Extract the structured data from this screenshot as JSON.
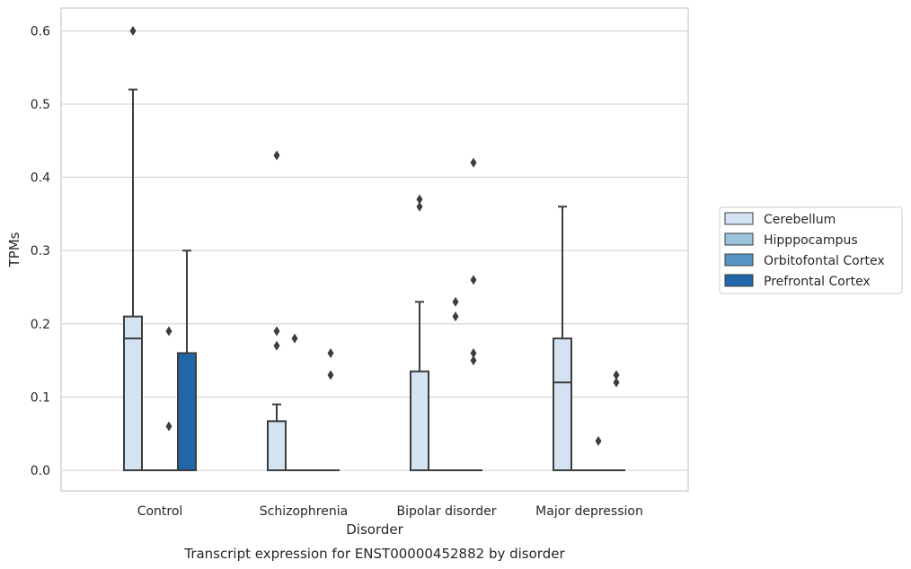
{
  "chart_data": {
    "type": "box",
    "caption": "Transcript expression for ENST00000452882 by disorder",
    "xlabel": "Disorder",
    "ylabel": "TPMs",
    "ylim": [
      -0.03,
      0.63
    ],
    "yticks": [
      "0.0",
      "0.1",
      "0.2",
      "0.3",
      "0.4",
      "0.5",
      "0.6"
    ],
    "grid": "horizontal",
    "legend_position": "right",
    "categories": [
      "Control",
      "Schizophrenia",
      "Bipolar disorder",
      "Major depression"
    ],
    "series": [
      {
        "name": "Cerebellum",
        "color": "#d4e3f1",
        "boxes": [
          {
            "min": 0,
            "q1": 0,
            "median": 0.18,
            "q3": 0.21,
            "max": 0.52,
            "outliers": [
              0.6
            ]
          },
          {
            "min": 0,
            "q1": 0,
            "median": 0,
            "q3": 0.067,
            "max": 0.09,
            "outliers": [
              0.43,
              0.19,
              0.17
            ]
          },
          {
            "min": 0,
            "q1": 0,
            "median": 0,
            "q3": 0.135,
            "max": 0.23,
            "outliers": [
              0.37,
              0.36
            ]
          },
          {
            "min": 0,
            "q1": 0,
            "median": 0.12,
            "q3": 0.18,
            "max": 0.36,
            "outliers": []
          }
        ]
      },
      {
        "name": "Hipppocampus",
        "color": "#9cc3de",
        "boxes": [
          {
            "min": 0,
            "q1": 0,
            "median": 0,
            "q3": 0,
            "max": 0,
            "outliers": []
          },
          {
            "min": 0,
            "q1": 0,
            "median": 0,
            "q3": 0,
            "max": 0,
            "outliers": [
              0.18
            ]
          },
          {
            "min": 0,
            "q1": 0,
            "median": 0,
            "q3": 0,
            "max": 0,
            "outliers": []
          },
          {
            "min": 0,
            "q1": 0,
            "median": 0,
            "q3": 0,
            "max": 0,
            "outliers": []
          }
        ]
      },
      {
        "name": "Orbitofontal Cortex",
        "color": "#5596c5",
        "boxes": [
          {
            "min": 0,
            "q1": 0,
            "median": 0,
            "q3": 0,
            "max": 0,
            "outliers": [
              0.19,
              0.06
            ]
          },
          {
            "min": 0,
            "q1": 0,
            "median": 0,
            "q3": 0,
            "max": 0,
            "outliers": []
          },
          {
            "min": 0,
            "q1": 0,
            "median": 0,
            "q3": 0,
            "max": 0,
            "outliers": [
              0.23,
              0.21
            ]
          },
          {
            "min": 0,
            "q1": 0,
            "median": 0,
            "q3": 0,
            "max": 0,
            "outliers": [
              0.04
            ]
          }
        ]
      },
      {
        "name": "Prefrontal Cortex",
        "color": "#2066a8",
        "boxes": [
          {
            "min": 0,
            "q1": 0,
            "median": 0,
            "q3": 0.16,
            "max": 0.3,
            "outliers": []
          },
          {
            "min": 0,
            "q1": 0,
            "median": 0,
            "q3": 0,
            "max": 0,
            "outliers": [
              0.16,
              0.13
            ]
          },
          {
            "min": 0,
            "q1": 0,
            "median": 0,
            "q3": 0,
            "max": 0,
            "outliers": [
              0.42,
              0.26,
              0.16,
              0.15
            ]
          },
          {
            "min": 0,
            "q1": 0,
            "median": 0,
            "q3": 0,
            "max": 0,
            "outliers": [
              0.13,
              0.12
            ]
          }
        ]
      }
    ]
  }
}
